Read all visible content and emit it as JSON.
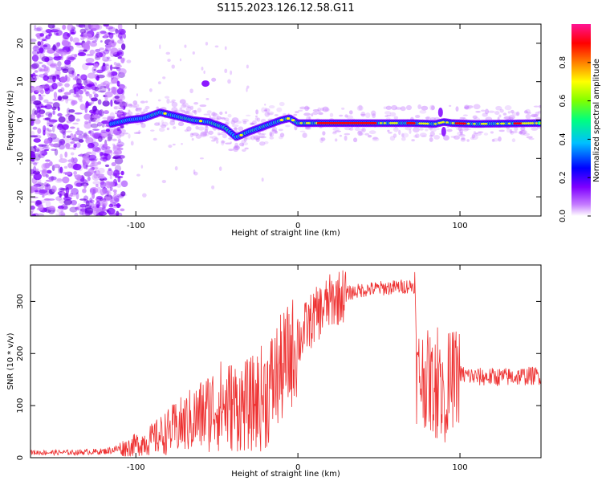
{
  "title": "S115.2023.126.12.58.G11",
  "chart_data": [
    {
      "type": "heatmap",
      "xlabel": "Height of straight line (km)",
      "ylabel": "Frequency (Hz)",
      "xlim": [
        -165,
        150
      ],
      "ylim": [
        -25,
        25
      ],
      "x_ticks": [
        -100,
        0,
        100
      ],
      "y_ticks": [
        20,
        10,
        0,
        -10,
        -20
      ],
      "ridge": {
        "x": [
          -115,
          -105,
          -95,
          -85,
          -75,
          -65,
          -55,
          -45,
          -38,
          -30,
          -20,
          -10,
          -5,
          0,
          10,
          30,
          50,
          70,
          85,
          90,
          95,
          110,
          130,
          150
        ],
        "y": [
          -1,
          0,
          0.5,
          2,
          1,
          0,
          -0.5,
          -2,
          -4.5,
          -3,
          -1.5,
          0,
          0.5,
          -0.8,
          -0.8,
          -0.8,
          -0.8,
          -0.8,
          -1,
          -0.5,
          -0.8,
          -1,
          -0.9,
          -0.8
        ]
      },
      "colorbar": {
        "label": "Normalized spectral amplitude",
        "range": [
          0,
          1
        ],
        "ticks": [
          0.0,
          0.2,
          0.4,
          0.6,
          0.8
        ],
        "colors": [
          "#ffffff",
          "#c57bff",
          "#7f00ff",
          "#0000ff",
          "#00bfff",
          "#00ff7f",
          "#7fff00",
          "#ffff00",
          "#ff7f00",
          "#ff0000",
          "#ff1493"
        ]
      }
    },
    {
      "type": "line",
      "xlabel": "Height of straight line (km)",
      "ylabel": "SNR (10 * v/v)",
      "xlim": [
        -165,
        150
      ],
      "ylim": [
        0,
        370
      ],
      "x_ticks": [
        -100,
        0,
        100
      ],
      "y_ticks": [
        0,
        100,
        200,
        300
      ],
      "color": "#ee3333",
      "envelope": {
        "x": [
          -165,
          -140,
          -120,
          -105,
          -90,
          -80,
          -70,
          -60,
          -50,
          -40,
          -30,
          -20,
          -10,
          0,
          5,
          10,
          20,
          30,
          40,
          50,
          60,
          70,
          72,
          73,
          80,
          85,
          90,
          95,
          100,
          110,
          130,
          150
        ],
        "y": [
          10,
          10,
          12,
          20,
          35,
          50,
          65,
          80,
          100,
          100,
          100,
          120,
          170,
          220,
          250,
          270,
          300,
          315,
          322,
          325,
          327,
          330,
          330,
          160,
          150,
          130,
          140,
          150,
          160,
          155,
          155,
          158
        ]
      }
    }
  ]
}
